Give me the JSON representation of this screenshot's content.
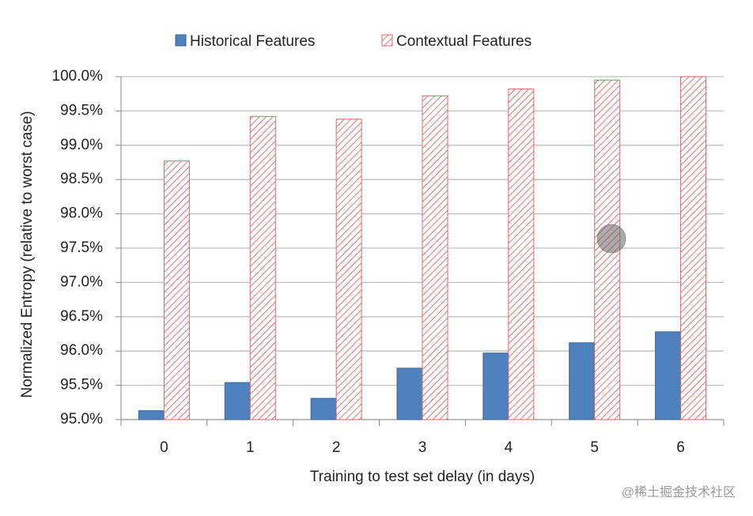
{
  "chart_data": {
    "type": "bar",
    "categories": [
      "0",
      "1",
      "2",
      "3",
      "4",
      "5",
      "6"
    ],
    "series": [
      {
        "name": "Historical Features",
        "color": "#4f81bd",
        "values": [
          95.13,
          95.54,
          95.31,
          95.75,
          95.97,
          96.12,
          96.28
        ]
      },
      {
        "name": "Contextual Features",
        "color": "#e06666",
        "values": [
          98.77,
          99.42,
          99.38,
          99.72,
          99.82,
          99.95,
          100.0
        ]
      }
    ],
    "x_label": "Training to test set delay (in days)",
    "y_label": "Normalized Entropy (relative to worst case)",
    "ylim": [
      95,
      100
    ],
    "yticks": [
      {
        "value": 95,
        "label": "95.0%"
      },
      {
        "value": 95.5,
        "label": "95.5%"
      },
      {
        "value": 96,
        "label": "96.0%"
      },
      {
        "value": 96.5,
        "label": "96.5%"
      },
      {
        "value": 97,
        "label": "97.0%"
      },
      {
        "value": 97.5,
        "label": "97.5%"
      },
      {
        "value": 98,
        "label": "98.0%"
      },
      {
        "value": 98.5,
        "label": "98.5%"
      },
      {
        "value": 99,
        "label": "99.0%"
      },
      {
        "value": 99.5,
        "label": "99.5%"
      },
      {
        "value": 100,
        "label": "100.0%"
      }
    ],
    "grid": true,
    "legend": "top",
    "watermark": "@稀土掘金技术社区"
  }
}
